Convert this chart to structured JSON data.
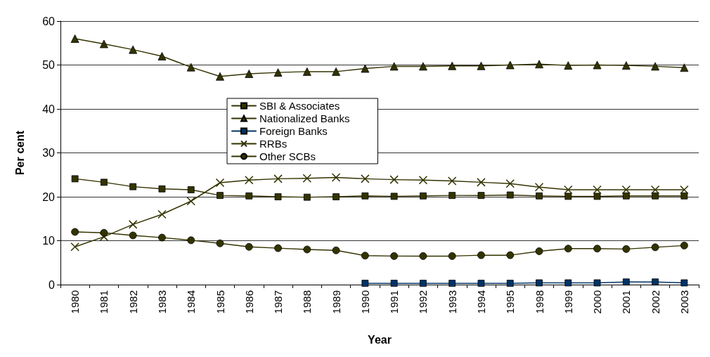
{
  "chart_data": {
    "type": "line",
    "xlabel": "Year",
    "ylabel": "Per cent",
    "categories": [
      "1980",
      "1981",
      "1982",
      "1983",
      "1984",
      "1985",
      "1986",
      "1987",
      "1988",
      "1989",
      "1990",
      "1991",
      "1992",
      "1993",
      "1994",
      "1995",
      "1998",
      "1999",
      "2000",
      "2001",
      "2002",
      "2003"
    ],
    "series": [
      {
        "name": "SBI & Associates",
        "color": "#333300",
        "marker": "square",
        "values": [
          24.1,
          23.3,
          22.3,
          21.8,
          21.6,
          20.3,
          20.2,
          20.0,
          19.9,
          20.0,
          20.2,
          20.1,
          20.2,
          20.3,
          20.3,
          20.4,
          20.2,
          20.1,
          20.1,
          20.2,
          20.2,
          20.2
        ]
      },
      {
        "name": "Nationalized Banks",
        "color": "#333300",
        "marker": "triangle",
        "values": [
          56.0,
          54.8,
          53.5,
          52.0,
          49.5,
          47.4,
          48.0,
          48.3,
          48.5,
          48.5,
          49.2,
          49.7,
          49.7,
          49.8,
          49.8,
          50.0,
          50.2,
          49.9,
          50.0,
          49.9,
          49.7,
          49.4
        ]
      },
      {
        "name": "Foreign Banks",
        "color": "#003366",
        "marker": "square",
        "values": [
          null,
          null,
          null,
          null,
          null,
          null,
          null,
          null,
          null,
          null,
          0.3,
          0.3,
          0.3,
          0.3,
          0.3,
          0.3,
          0.4,
          0.4,
          0.4,
          0.6,
          0.6,
          0.4
        ]
      },
      {
        "name": "RRBs",
        "color": "#333300",
        "marker": "cross",
        "values": [
          8.6,
          10.9,
          13.7,
          16.0,
          19.0,
          23.2,
          23.8,
          24.1,
          24.2,
          24.4,
          24.1,
          23.9,
          23.8,
          23.6,
          23.3,
          23.0,
          22.2,
          21.6,
          21.6,
          21.6,
          21.6,
          21.6
        ]
      },
      {
        "name": "Other SCBs",
        "color": "#333300",
        "marker": "circle",
        "values": [
          12.0,
          11.8,
          11.2,
          10.7,
          10.1,
          9.4,
          8.6,
          8.3,
          8.0,
          7.8,
          6.6,
          6.5,
          6.5,
          6.5,
          6.7,
          6.7,
          7.6,
          8.2,
          8.2,
          8.1,
          8.5,
          8.9
        ]
      }
    ],
    "ylim": [
      0,
      60
    ],
    "yticks": [
      0,
      10,
      20,
      30,
      40,
      50,
      60
    ],
    "grid": "y",
    "legend": "center",
    "line_style": "solid"
  }
}
